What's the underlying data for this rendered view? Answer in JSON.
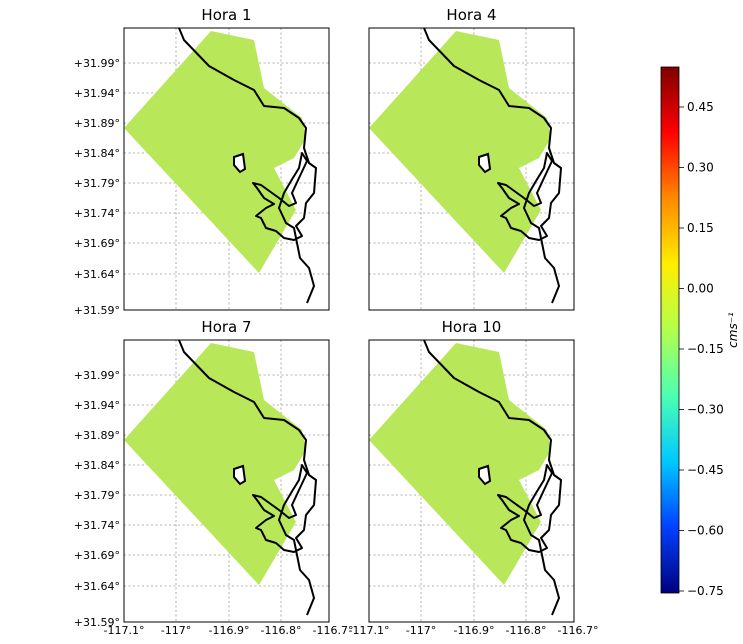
{
  "panels": [
    {
      "title": "Hora 1"
    },
    {
      "title": "Hora 4"
    },
    {
      "title": "Hora 7"
    },
    {
      "title": "Hora 10"
    }
  ],
  "lat_ticks": [
    "+31.99°",
    "+31.94°",
    "+31.89°",
    "+31.84°",
    "+31.79°",
    "+31.74°",
    "+31.69°",
    "+31.64°",
    "+31.59°"
  ],
  "lon_ticks": [
    "-117.1°",
    "-117°",
    "-116.9°",
    "-116.8°",
    "-116.7°"
  ],
  "colorbar": {
    "label": "cms⁻¹",
    "ticks": [
      "0.45",
      "0.30",
      "0.15",
      "0.00",
      "−0.15",
      "−0.30",
      "−0.45",
      "−0.60",
      "−0.75"
    ],
    "colors": [
      "#7f0000",
      "#ff0000",
      "#ff8a00",
      "#ffee00",
      "#b2ff4c",
      "#4cffb2",
      "#00c8ff",
      "#0040ff",
      "#00007f"
    ]
  }
}
